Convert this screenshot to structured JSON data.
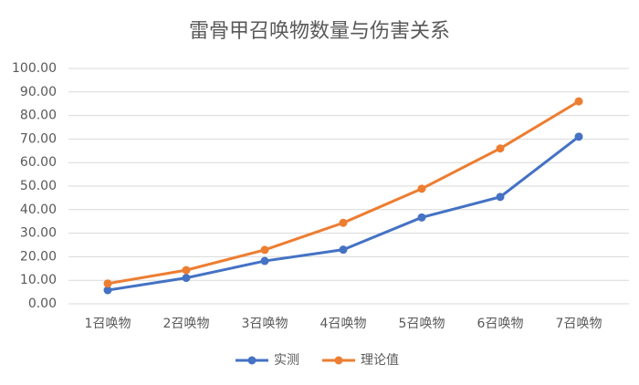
{
  "chart_data": {
    "type": "line",
    "title": "雷骨甲召唤物数量与伤害关系",
    "categories": [
      "1召唤物",
      "2召唤物",
      "3召唤物",
      "4召唤物",
      "5召唤物",
      "6召唤物",
      "7召唤物"
    ],
    "series": [
      {
        "name": "实测",
        "color": "#4472c4",
        "values": [
          5.8,
          11.0,
          18.2,
          23.0,
          36.7,
          45.4,
          71.0
        ]
      },
      {
        "name": "理论值",
        "color": "#ed7d31",
        "values": [
          8.6,
          14.3,
          22.9,
          34.4,
          48.9,
          66.0,
          86.0
        ]
      }
    ],
    "ylim": [
      0,
      100
    ],
    "yticks": [
      {
        "value": 0,
        "label": "0.00"
      },
      {
        "value": 10,
        "label": "10.00"
      },
      {
        "value": 20,
        "label": "20.00"
      },
      {
        "value": 30,
        "label": "30.00"
      },
      {
        "value": 40,
        "label": "40.00"
      },
      {
        "value": 50,
        "label": "50.00"
      },
      {
        "value": 60,
        "label": "60.00"
      },
      {
        "value": 70,
        "label": "70.00"
      },
      {
        "value": 80,
        "label": "80.00"
      },
      {
        "value": 90,
        "label": "90.00"
      },
      {
        "value": 100,
        "label": "100.00"
      }
    ],
    "grid": true,
    "legend": "bottom"
  }
}
